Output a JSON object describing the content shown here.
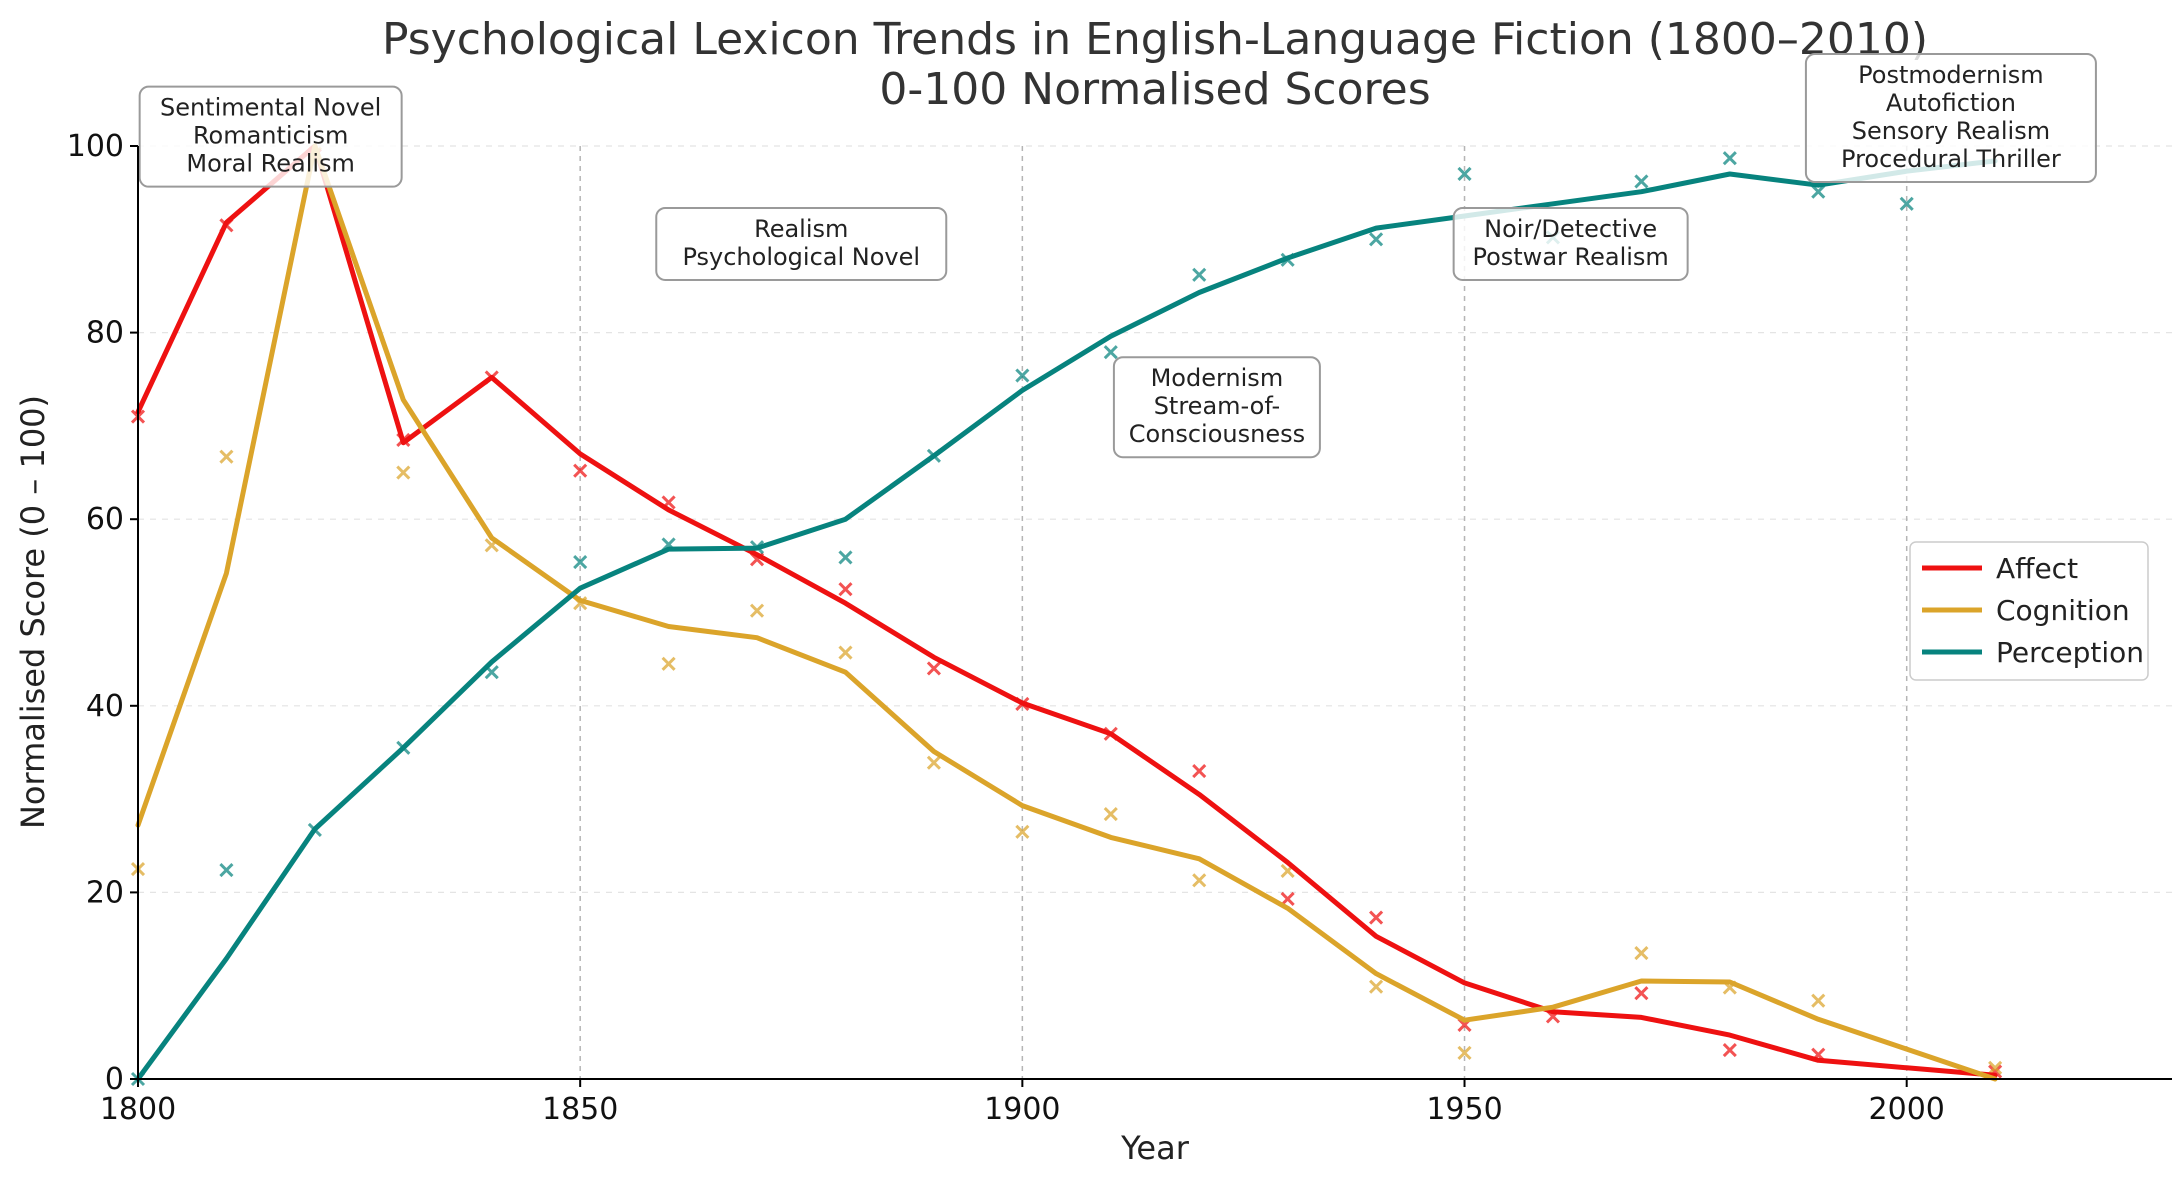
{
  "chart_data": {
    "type": "line",
    "title": "Psychological Lexicon Trends in English-Language Fiction (1800–2010)",
    "subtitle": "0-100 Normalised Scores",
    "xlabel": "Year",
    "ylabel": "Normalised Score (0 – 100)",
    "xlim": [
      1800,
      2030
    ],
    "ylim": [
      0,
      100
    ],
    "x_ticks": [
      1800,
      1850,
      1900,
      1950,
      2000
    ],
    "y_ticks": [
      0,
      20,
      40,
      60,
      80,
      100
    ],
    "grid": "horizontal dashed",
    "legend_position": "right",
    "x": [
      1800,
      1810,
      1820,
      1830,
      1840,
      1850,
      1860,
      1870,
      1880,
      1890,
      1900,
      1910,
      1920,
      1930,
      1940,
      1950,
      1960,
      1970,
      1980,
      1990,
      2000,
      2010
    ],
    "series": [
      {
        "name": "Affect",
        "color": "#ee1111",
        "values": [
          71.5,
          91.8,
          100,
          68.2,
          75.2,
          67,
          61,
          56.2,
          51,
          45.2,
          40.3,
          37,
          30.5,
          23.2,
          15.3,
          10.3,
          7.2,
          6.6,
          4.7,
          2,
          1.2,
          0.4
        ],
        "raw": [
          71,
          91.5,
          99,
          68.5,
          75.2,
          65.2,
          61.8,
          55.7,
          52.5,
          44,
          40.2,
          37,
          33,
          19.3,
          17.3,
          5.8,
          6.7,
          9.2,
          3.1,
          2.6,
          null,
          0.8
        ]
      },
      {
        "name": "Cognition",
        "color": "#dba42a",
        "values": [
          27.2,
          54.2,
          100,
          72.8,
          58,
          51.3,
          48.5,
          47.3,
          43.6,
          35.1,
          29.3,
          25.9,
          23.6,
          18.3,
          11.3,
          6.3,
          7.7,
          10.5,
          10.4,
          6.4,
          3.2,
          0
        ],
        "raw": [
          22.5,
          66.7,
          99.2,
          65,
          57.2,
          51,
          44.5,
          50.2,
          45.7,
          33.9,
          26.5,
          28.4,
          21.3,
          22.3,
          9.9,
          2.8,
          null,
          13.5,
          9.8,
          8.4,
          null,
          1.2
        ]
      },
      {
        "name": "Perception",
        "color": "#07837e",
        "values": [
          0,
          12.9,
          26.8,
          35.5,
          44.7,
          52.6,
          56.8,
          56.9,
          60,
          66.8,
          73.8,
          79.6,
          84.3,
          88,
          91.2,
          92.5,
          93.8,
          95.1,
          97,
          95.8,
          97.3,
          98.4
        ],
        "raw": [
          0,
          22.4,
          26.7,
          35.5,
          43.6,
          55.4,
          57.3,
          57,
          55.9,
          66.8,
          75.4,
          77.9,
          86.2,
          87.8,
          90,
          97,
          90.2,
          96.2,
          98.7,
          95.1,
          93.8,
          null
        ]
      }
    ],
    "period_lines": [
      1850,
      1900,
      1950,
      2000
    ],
    "annotations": [
      {
        "lines": [
          "Sentimental Novel",
          "Romanticism",
          "Moral Realism"
        ],
        "x": 1815,
        "y": 101
      },
      {
        "lines": [
          "Realism",
          "Psychological Novel"
        ],
        "x": 1875,
        "y": 89.5
      },
      {
        "lines": [
          "Modernism",
          "Stream-of-",
          "Consciousness"
        ],
        "x": 1922,
        "y": 72
      },
      {
        "lines": [
          "Noir/Detective",
          "Postwar Realism"
        ],
        "x": 1962,
        "y": 89.5
      },
      {
        "lines": [
          "Postmodernism",
          "Autofiction",
          "Sensory Realism",
          "Procedural Thriller"
        ],
        "x": 2005,
        "y": 103
      }
    ]
  }
}
